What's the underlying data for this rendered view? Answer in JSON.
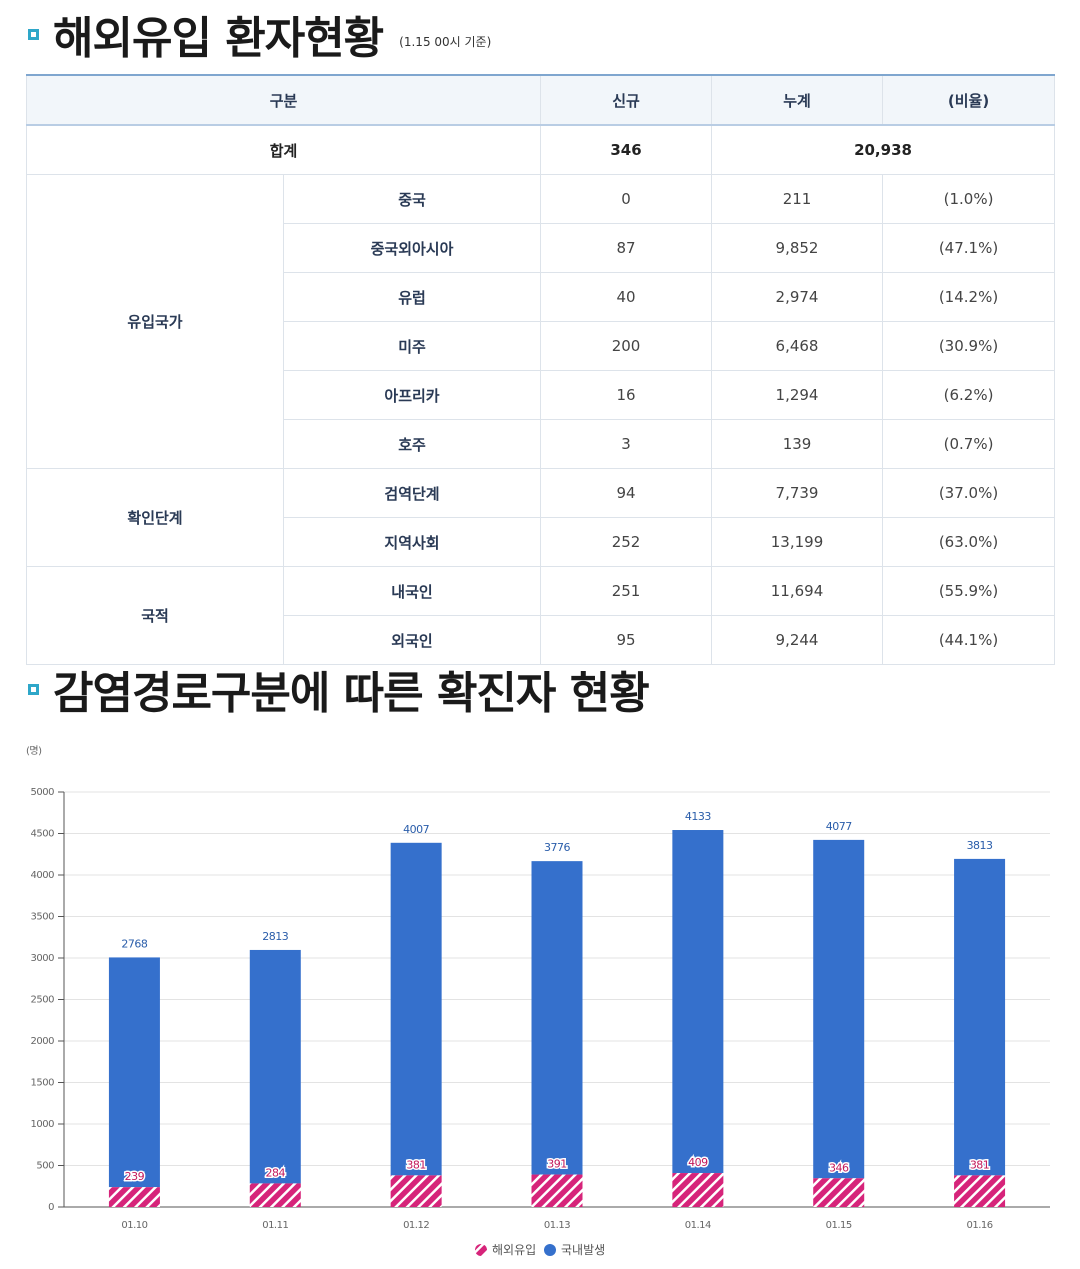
{
  "section1": {
    "title": "해외유입 환자현황",
    "note": "(1.15 00시 기준)"
  },
  "table": {
    "headers": [
      "구분",
      "신규",
      "누계",
      "(비율)"
    ],
    "total": {
      "label": "합계",
      "new": "346",
      "cum": "20,938"
    },
    "groups": [
      {
        "name": "유입국가",
        "rows": [
          {
            "label": "중국",
            "new": "0",
            "cum": "211",
            "ratio": "(1.0%)"
          },
          {
            "label": "중국외아시아",
            "new": "87",
            "cum": "9,852",
            "ratio": "(47.1%)"
          },
          {
            "label": "유럽",
            "new": "40",
            "cum": "2,974",
            "ratio": "(14.2%)"
          },
          {
            "label": "미주",
            "new": "200",
            "cum": "6,468",
            "ratio": "(30.9%)"
          },
          {
            "label": "아프리카",
            "new": "16",
            "cum": "1,294",
            "ratio": "(6.2%)"
          },
          {
            "label": "호주",
            "new": "3",
            "cum": "139",
            "ratio": "(0.7%)"
          }
        ]
      },
      {
        "name": "확인단계",
        "rows": [
          {
            "label": "검역단계",
            "new": "94",
            "cum": "7,739",
            "ratio": "(37.0%)"
          },
          {
            "label": "지역사회",
            "new": "252",
            "cum": "13,199",
            "ratio": "(63.0%)"
          }
        ]
      },
      {
        "name": "국적",
        "rows": [
          {
            "label": "내국인",
            "new": "251",
            "cum": "11,694",
            "ratio": "(55.9%)"
          },
          {
            "label": "외국인",
            "new": "95",
            "cum": "9,244",
            "ratio": "(44.1%)"
          }
        ]
      }
    ]
  },
  "section2": {
    "title": "감염경로구분에 따른 확진자 현황"
  },
  "colors": {
    "domestic": "#3570cc",
    "imported": "#d6247a",
    "accent": "#2ea7c9"
  },
  "chart_data": {
    "type": "bar",
    "stacked": true,
    "ylabel": "(명)",
    "ylim": [
      0,
      5000
    ],
    "yticks": [
      0,
      500,
      1000,
      1500,
      2000,
      2500,
      3000,
      3500,
      4000,
      4500,
      5000
    ],
    "categories": [
      "01.10",
      "01.11",
      "01.12",
      "01.13",
      "01.14",
      "01.15",
      "01.16"
    ],
    "series": [
      {
        "name": "해외유입",
        "values": [
          239,
          284,
          381,
          391,
          409,
          346,
          381
        ]
      },
      {
        "name": "국내발생",
        "values": [
          2768,
          2813,
          4007,
          3776,
          4133,
          4077,
          3813
        ]
      }
    ],
    "grid": true,
    "legend": "bottom-center"
  }
}
